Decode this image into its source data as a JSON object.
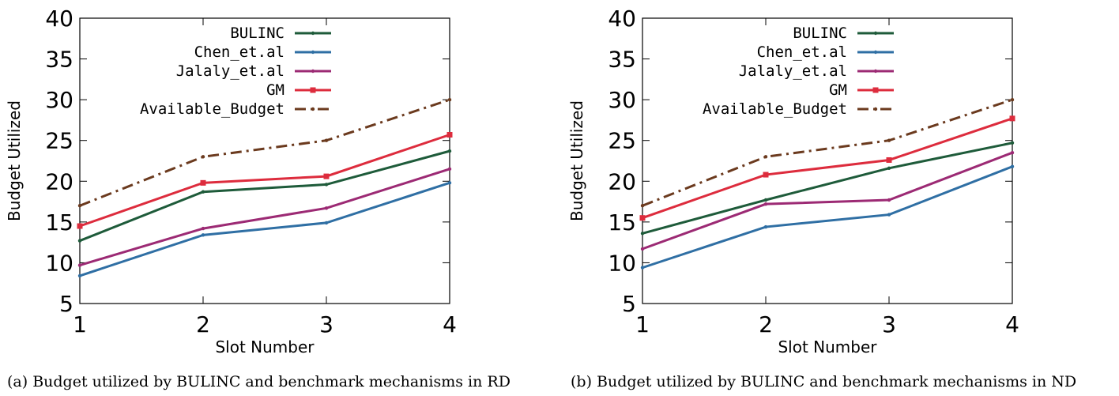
{
  "colors": {
    "BULINC": "#1e5b3a",
    "Chen_et.al": "#2f6fa4",
    "Jalaly_et.al": "#9c2a74",
    "GM": "#dd2c3d",
    "Available_Budget": "#6b3a1e"
  },
  "chart_data": [
    {
      "type": "line",
      "xlabel": "Slot Number",
      "ylabel": "Budget Utilized",
      "x": [
        1,
        2,
        3,
        4
      ],
      "xticks": [
        "1",
        "2",
        "3",
        "4"
      ],
      "yticks": [
        "5",
        "10",
        "15",
        "20",
        "25",
        "30",
        "35",
        "40"
      ],
      "xlim": [
        1,
        4
      ],
      "ylim": [
        5,
        40
      ],
      "grid": false,
      "legend_position": "top-right",
      "caption": "(a) Budget utilized by BULINC and benchmark mechanisms in RD",
      "series": [
        {
          "name": "BULINC",
          "values": [
            12.7,
            18.7,
            19.6,
            23.7
          ],
          "style": "solid",
          "marker": "dot"
        },
        {
          "name": "Chen_et.al",
          "values": [
            8.4,
            13.4,
            14.9,
            19.8
          ],
          "style": "solid",
          "marker": "dot"
        },
        {
          "name": "Jalaly_et.al",
          "values": [
            9.7,
            14.2,
            16.7,
            21.5
          ],
          "style": "solid",
          "marker": "dot"
        },
        {
          "name": "GM",
          "values": [
            14.5,
            19.8,
            20.6,
            25.7
          ],
          "style": "solid",
          "marker": "square"
        },
        {
          "name": "Available_Budget",
          "values": [
            17,
            23,
            25,
            30
          ],
          "style": "dash-dot",
          "marker": "dot"
        }
      ]
    },
    {
      "type": "line",
      "xlabel": "Slot Number",
      "ylabel": "Budget Utilized",
      "x": [
        1,
        2,
        3,
        4
      ],
      "xticks": [
        "1",
        "2",
        "3",
        "4"
      ],
      "yticks": [
        "5",
        "10",
        "15",
        "20",
        "25",
        "30",
        "35",
        "40"
      ],
      "xlim": [
        1,
        4
      ],
      "ylim": [
        5,
        40
      ],
      "grid": false,
      "legend_position": "top-right",
      "caption": "(b) Budget utilized by BULINC and benchmark mechanisms in ND",
      "series": [
        {
          "name": "BULINC",
          "values": [
            13.6,
            17.7,
            21.6,
            24.7
          ],
          "style": "solid",
          "marker": "dot"
        },
        {
          "name": "Chen_et.al",
          "values": [
            9.4,
            14.4,
            15.9,
            21.8
          ],
          "style": "solid",
          "marker": "dot"
        },
        {
          "name": "Jalaly_et.al",
          "values": [
            11.7,
            17.2,
            17.7,
            23.5
          ],
          "style": "solid",
          "marker": "dot"
        },
        {
          "name": "GM",
          "values": [
            15.5,
            20.8,
            22.6,
            27.7
          ],
          "style": "solid",
          "marker": "square"
        },
        {
          "name": "Available_Budget",
          "values": [
            17,
            23,
            25,
            30
          ],
          "style": "dash-dot",
          "marker": "dot"
        }
      ]
    }
  ]
}
